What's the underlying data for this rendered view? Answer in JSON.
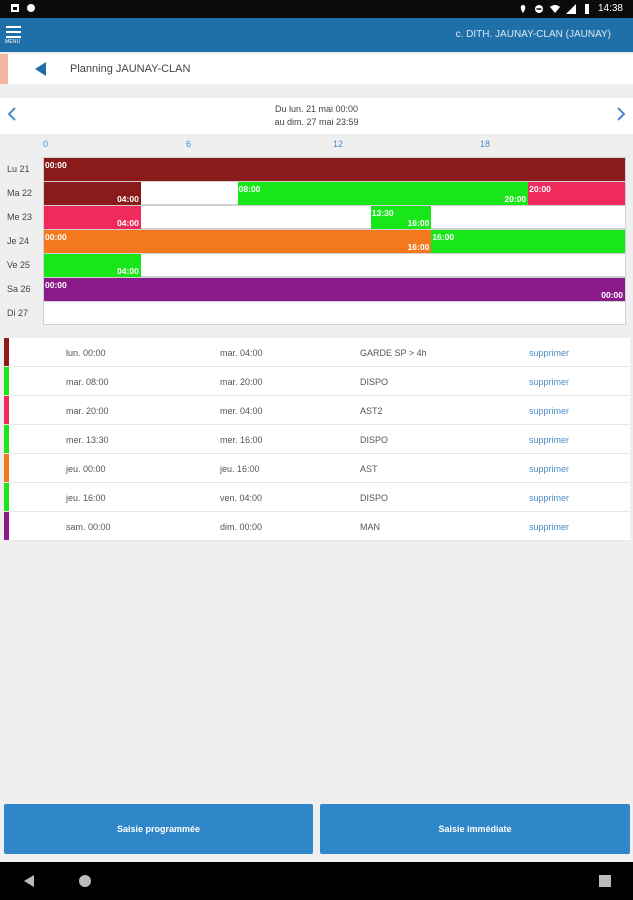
{
  "status": {
    "time": "14:38"
  },
  "appbar": {
    "menu_label": "MENU",
    "user": "c. DITH. JAUNAY-CLAN (JAUNAY)"
  },
  "titlebar": {
    "title": "Planning JAUNAY-CLAN"
  },
  "daterange": {
    "line1": "Du lun. 21 mai 00:00",
    "line2": "au dim. 27 mai 23:59"
  },
  "axis": {
    "ticks": [
      "0",
      "6",
      "12",
      "18"
    ]
  },
  "days": [
    "Lu 21",
    "Ma 22",
    "Me 23",
    "Je 24",
    "Ve 25",
    "Sa 26",
    "Di 27"
  ],
  "segments": [
    {
      "day": 0,
      "start_h": 0,
      "end_h": 24,
      "color": "#8b1a1a",
      "start": "00:00",
      "end": ""
    },
    {
      "day": 1,
      "start_h": 0,
      "end_h": 4,
      "color": "#8b1a1a",
      "start": "",
      "end": "04:00"
    },
    {
      "day": 1,
      "start_h": 8,
      "end_h": 20,
      "color": "#19e619",
      "start": "08:00",
      "end": "20:00"
    },
    {
      "day": 1,
      "start_h": 20,
      "end_h": 24,
      "color": "#f02a5a",
      "start": "20:00",
      "end": ""
    },
    {
      "day": 2,
      "start_h": 0,
      "end_h": 4,
      "color": "#f02a5a",
      "start": "",
      "end": "04:00"
    },
    {
      "day": 2,
      "start_h": 13.5,
      "end_h": 16,
      "color": "#19e619",
      "start": "13:30",
      "end": "16:00"
    },
    {
      "day": 3,
      "start_h": 0,
      "end_h": 16,
      "color": "#f4781e",
      "start": "00:00",
      "end": "16:00"
    },
    {
      "day": 3,
      "start_h": 16,
      "end_h": 24,
      "color": "#19e619",
      "start": "16:00",
      "end": ""
    },
    {
      "day": 4,
      "start_h": 0,
      "end_h": 4,
      "color": "#19e619",
      "start": "",
      "end": "04:00"
    },
    {
      "day": 5,
      "start_h": 0,
      "end_h": 24,
      "color": "#8a1a8a",
      "start": "00:00",
      "end": "00:00"
    }
  ],
  "list": [
    {
      "color": "#8b1a1a",
      "from": "lun. 00:00",
      "to": "mar. 04:00",
      "type": "GARDE SP > 4h",
      "action": "supprimer"
    },
    {
      "color": "#19e619",
      "from": "mar. 08:00",
      "to": "mar. 20:00",
      "type": "DISPO",
      "action": "supprimer"
    },
    {
      "color": "#f02a5a",
      "from": "mar. 20:00",
      "to": "mer. 04:00",
      "type": "AST2",
      "action": "supprimer"
    },
    {
      "color": "#19e619",
      "from": "mer. 13:30",
      "to": "mer. 16:00",
      "type": "DISPO",
      "action": "supprimer"
    },
    {
      "color": "#f4781e",
      "from": "jeu. 00:00",
      "to": "jeu. 16:00",
      "type": "AST",
      "action": "supprimer"
    },
    {
      "color": "#19e619",
      "from": "jeu. 16:00",
      "to": "ven. 04:00",
      "type": "DISPO",
      "action": "supprimer"
    },
    {
      "color": "#8a1a8a",
      "from": "sam. 00:00",
      "to": "dim. 00:00",
      "type": "MAN",
      "action": "supprimer"
    }
  ],
  "buttons": {
    "scheduled": "Saisie programmée",
    "immediate": "Saisie immédiate"
  }
}
